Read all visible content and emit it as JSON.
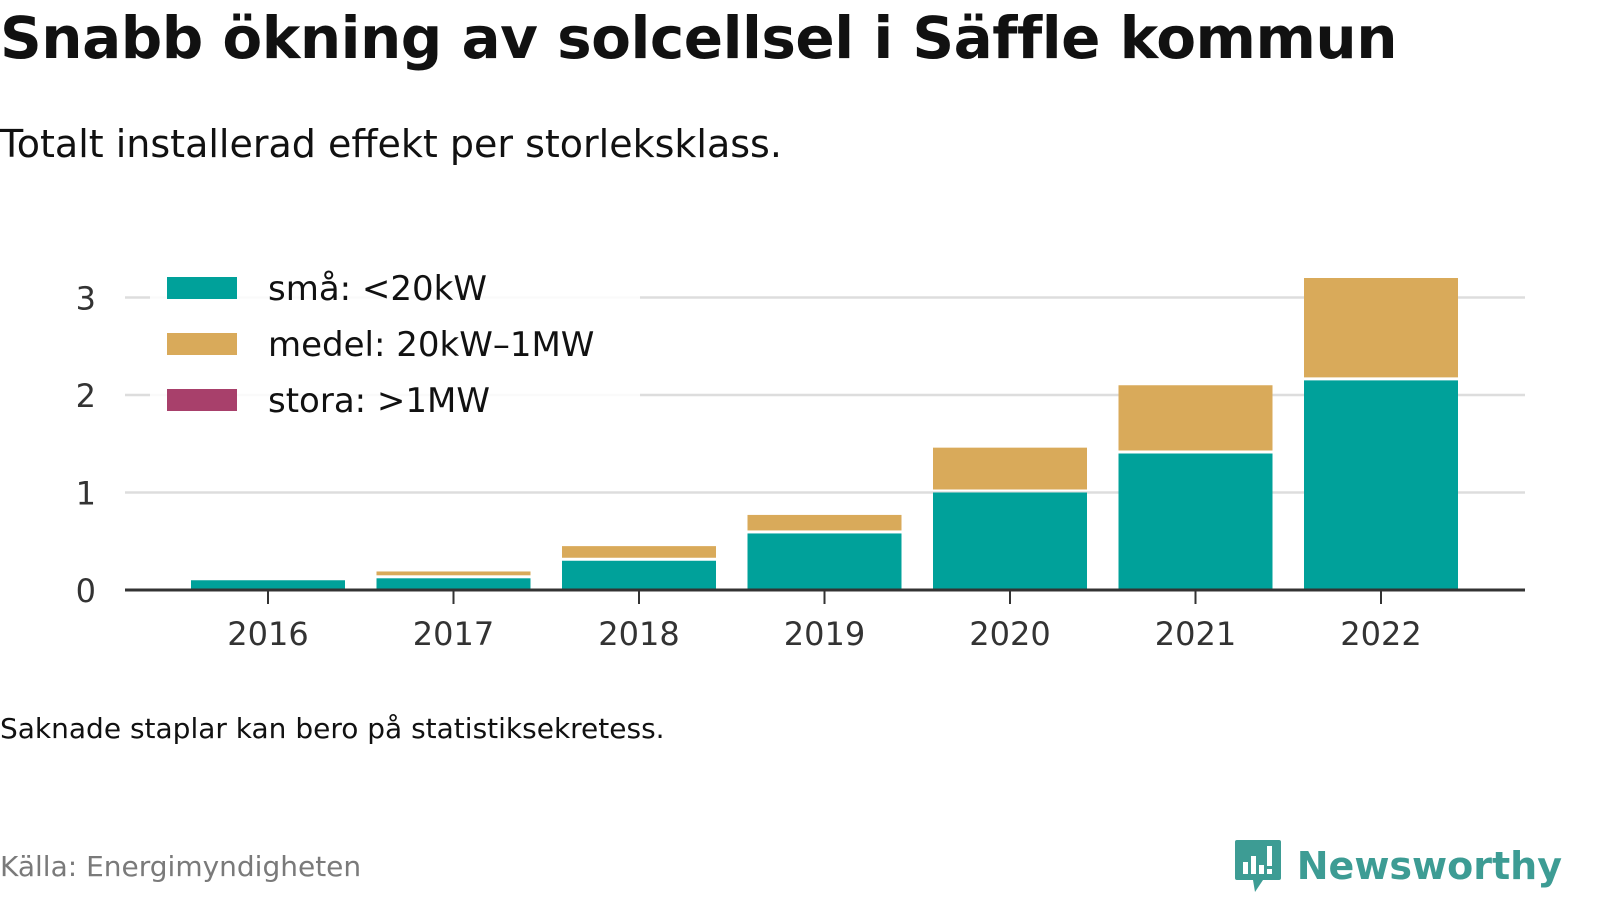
{
  "header": {
    "title": "Snabb ökning av solcellsel i Säffle kommun",
    "subtitle": "Totalt installerad effekt per storleksklass."
  },
  "footer": {
    "note": "Saknade staplar kan bero på statistiksekretess.",
    "source": "Källa: Energimyndigheten",
    "brand": "Newsworthy"
  },
  "colors": {
    "sma": "#00a19a",
    "medel": "#d9aa5a",
    "stora": "#a8406b",
    "grid": "#dddddd",
    "axis": "#333333",
    "brand": "#3d9c94"
  },
  "chart_data": {
    "type": "bar",
    "stacked": true,
    "categories": [
      "2016",
      "2017",
      "2018",
      "2019",
      "2020",
      "2021",
      "2022"
    ],
    "series": [
      {
        "name": "små: <20kW",
        "color": "#00a19a",
        "values": [
          0.1,
          0.12,
          0.3,
          0.58,
          1.0,
          1.4,
          2.15
        ]
      },
      {
        "name": "medel: 20kW–1MW",
        "color": "#d9aa5a",
        "values": [
          0,
          0.07,
          0.15,
          0.19,
          0.46,
          0.7,
          1.05
        ]
      },
      {
        "name": "stora: >1MW",
        "color": "#a8406b",
        "values": [
          0,
          0,
          0,
          0,
          0,
          0,
          0
        ]
      }
    ],
    "yticks": [
      0,
      1,
      2,
      3
    ],
    "ylim": [
      0,
      3.3
    ],
    "grid": true,
    "legend_position": "top-left",
    "title": "Snabb ökning av solcellsel i Säffle kommun",
    "subtitle": "Totalt installerad effekt per storleksklass."
  }
}
